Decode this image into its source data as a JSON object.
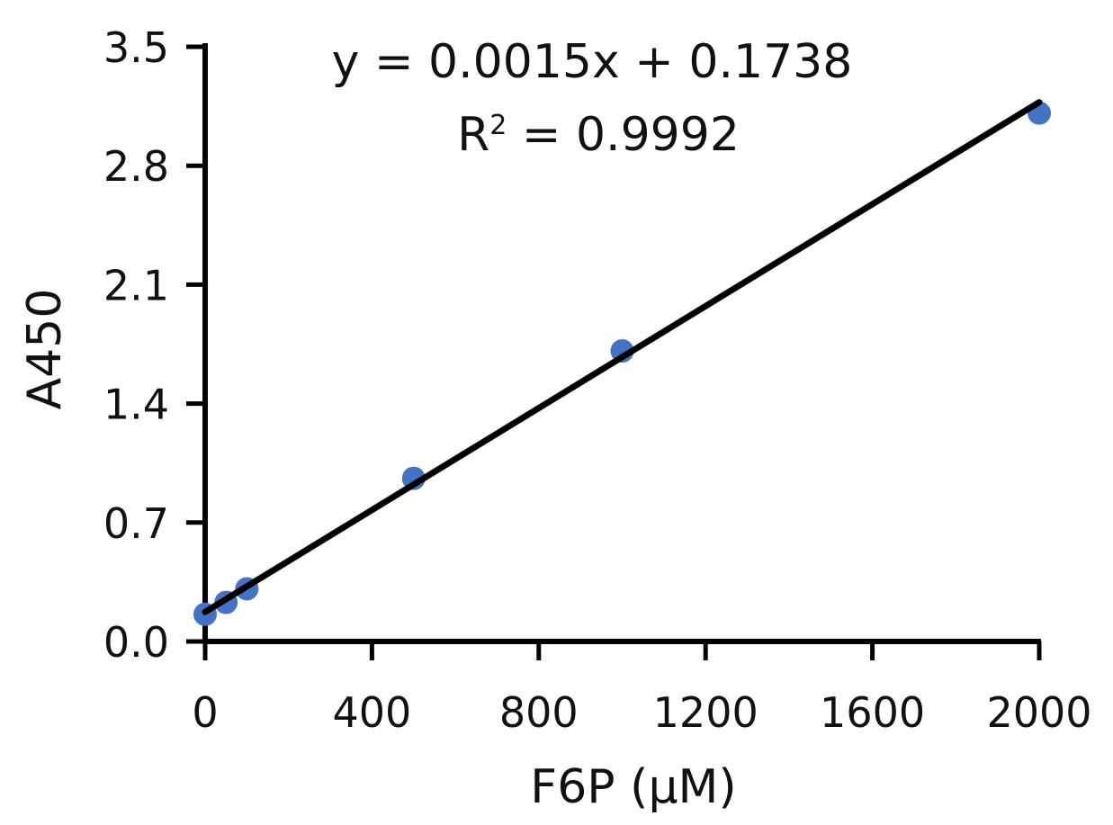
{
  "chart_data": {
    "type": "scatter",
    "xlabel": "F6P (µM)",
    "ylabel": "A450",
    "xlim": [
      0,
      2000
    ],
    "ylim": [
      0,
      3.5
    ],
    "x_ticks": [
      "0",
      "400",
      "800",
      "1200",
      "1600",
      "2000"
    ],
    "y_ticks": [
      "0.0",
      "0.7",
      "1.4",
      "2.1",
      "2.8",
      "3.5"
    ],
    "grid": false,
    "series": [
      {
        "x": [
          0,
          50,
          100,
          500,
          1000,
          2000
        ],
        "y": [
          0.16,
          0.23,
          0.31,
          0.96,
          1.71,
          3.11
        ],
        "color": "#4472c4"
      }
    ],
    "trendline": {
      "slope": 0.0015,
      "intercept": 0.1738,
      "x_range": [
        0,
        2000
      ],
      "color": "#000000"
    },
    "annotations": {
      "equation": "y = 0.0015x + 0.1738",
      "r_squared_prefix": "R",
      "r_squared_superscript": "2",
      "r_squared_rest": " = 0.9992"
    }
  }
}
